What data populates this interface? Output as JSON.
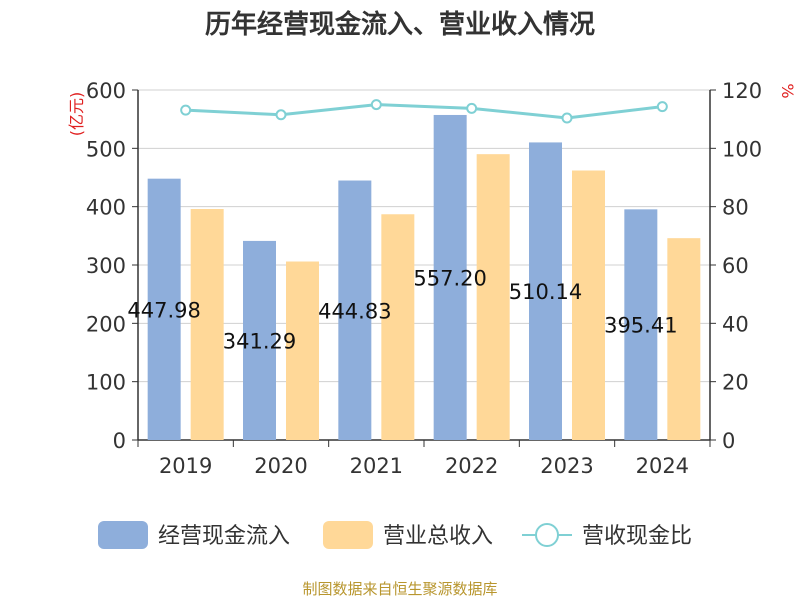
{
  "chart_data": {
    "type": "bar",
    "title": "历年经营现金流入、营业收入情况",
    "left_axis_unit": "(亿元)",
    "right_axis_unit": "%",
    "categories": [
      "2019",
      "2020",
      "2021",
      "2022",
      "2023",
      "2024"
    ],
    "ylim_left": [
      0,
      600
    ],
    "left_ticks": [
      0,
      100,
      200,
      300,
      400,
      500,
      600
    ],
    "ylim_right": [
      0,
      120
    ],
    "right_ticks": [
      0,
      20,
      40,
      60,
      80,
      100,
      120
    ],
    "grid": true,
    "legend_position": "bottom",
    "series": [
      {
        "name": "经营现金流入",
        "type": "bar",
        "axis": "left",
        "color": "#8eaedb",
        "values": [
          447.98,
          341.29,
          444.83,
          557.2,
          510.14,
          395.41
        ],
        "labels": [
          "447.98",
          "341.29",
          "444.83",
          "557.20",
          "510.14",
          "395.41"
        ]
      },
      {
        "name": "营业总收入",
        "type": "bar",
        "axis": "left",
        "color": "#ffd898",
        "values": [
          396,
          306,
          387,
          490,
          462,
          346
        ]
      },
      {
        "name": "营收现金比",
        "type": "line",
        "axis": "right",
        "color": "#7fd0d4",
        "values": [
          113.1,
          111.5,
          115.0,
          113.7,
          110.4,
          114.3
        ]
      }
    ],
    "source": "制图数据来自恒生聚源数据库"
  }
}
